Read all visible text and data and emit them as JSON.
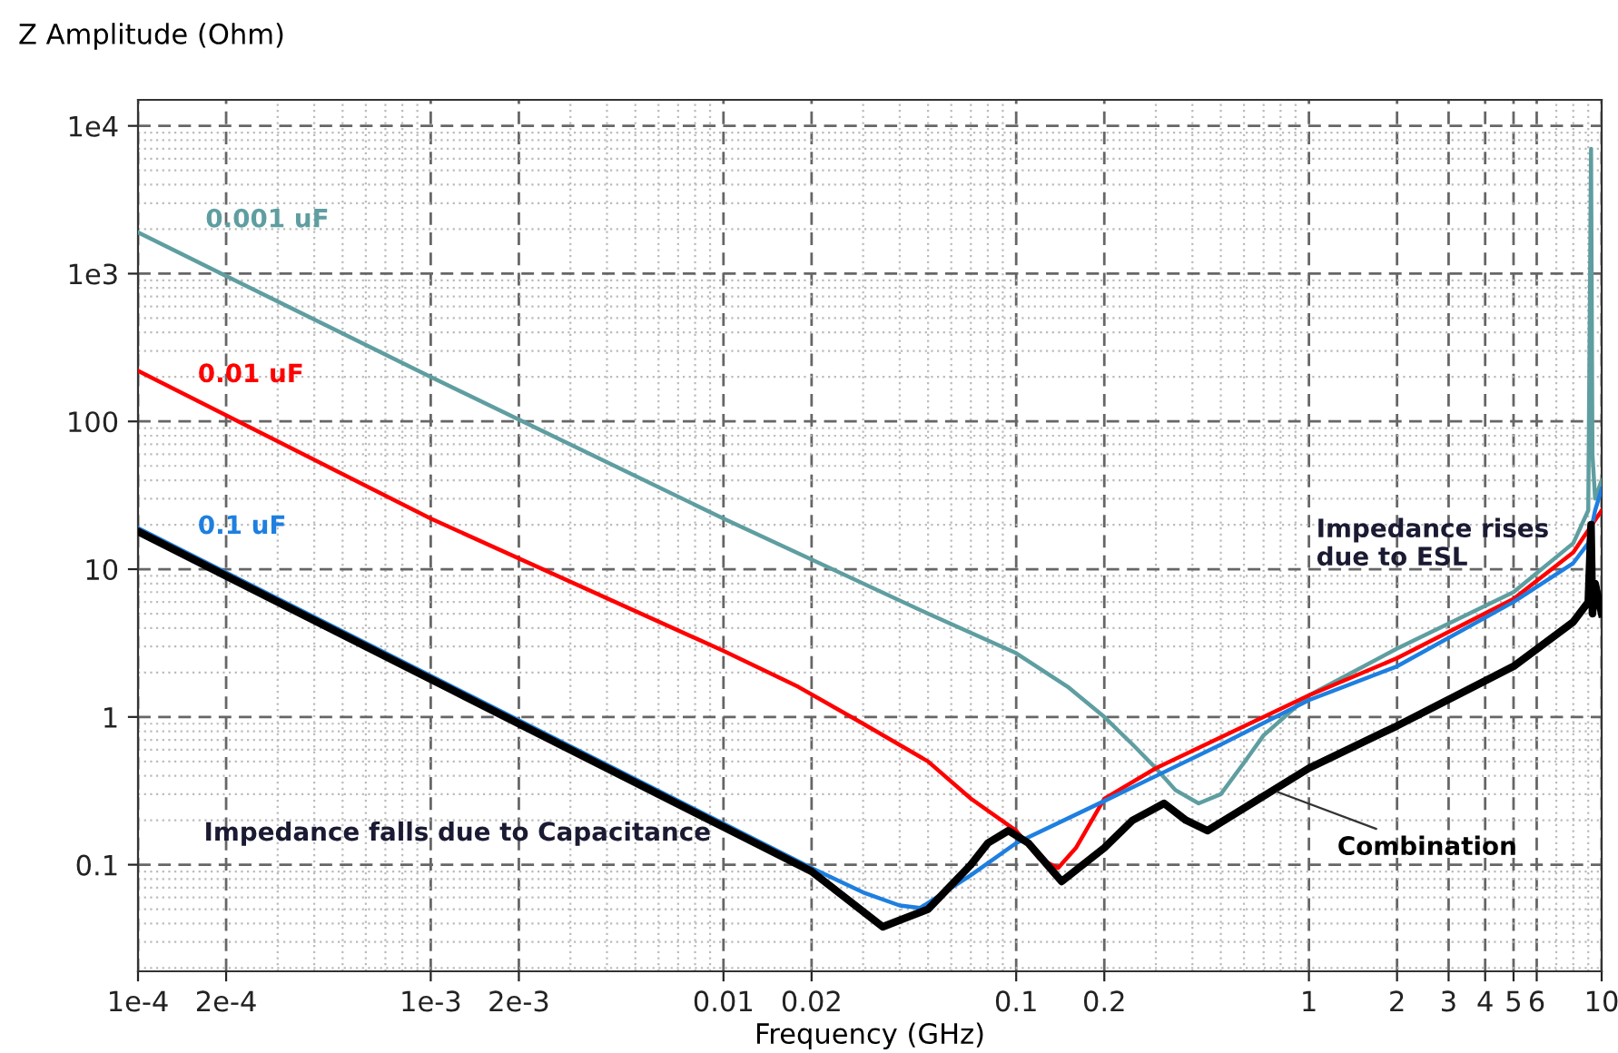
{
  "chart_data": {
    "type": "line",
    "xlabel": "Frequency (GHz)",
    "ylabel": "Z Amplitude (Ohm)",
    "log": "xy",
    "grid": true,
    "legend": false,
    "marker": "none",
    "line_style": "solid",
    "xlim": [
      0.0001,
      10
    ],
    "ylim": [
      0.019,
      15000
    ],
    "xticks": [
      {
        "value": 0.0001,
        "label": "1e-4"
      },
      {
        "value": 0.0002,
        "label": "2e-4"
      },
      {
        "value": 0.001,
        "label": "1e-3"
      },
      {
        "value": 0.002,
        "label": "2e-3"
      },
      0.01,
      0.02,
      0.1,
      0.2,
      1,
      2,
      3,
      4,
      5,
      6,
      10
    ],
    "yticks": [
      0.1,
      1,
      10,
      100,
      {
        "value": 1000,
        "label": "1e3"
      },
      {
        "value": 10000,
        "label": "1e4"
      }
    ],
    "series": [
      {
        "name": "0.001 uF",
        "color": "#5f9ea0",
        "x": [
          0.0001,
          0.001,
          0.01,
          0.05,
          0.1,
          0.15,
          0.2,
          0.25,
          0.3,
          0.35,
          0.42,
          0.5,
          0.6,
          0.7,
          1,
          2,
          5,
          8,
          9,
          9.2,
          9.3,
          9.5,
          10
        ],
        "values": [
          1900,
          200,
          22,
          5,
          2.7,
          1.6,
          1.0,
          0.65,
          0.45,
          0.32,
          0.26,
          0.3,
          0.49,
          0.75,
          1.4,
          2.9,
          7,
          15,
          25,
          7000,
          60,
          30,
          40
        ]
      },
      {
        "name": "0.01 uF",
        "color": "#ff0000",
        "x": [
          0.0001,
          0.001,
          0.01,
          0.018,
          0.03,
          0.05,
          0.07,
          0.1,
          0.12,
          0.139,
          0.16,
          0.2,
          0.3,
          1,
          2,
          5,
          8,
          10
        ],
        "values": [
          220,
          22,
          2.8,
          1.6,
          0.9,
          0.5,
          0.28,
          0.17,
          0.11,
          0.095,
          0.13,
          0.28,
          0.45,
          1.4,
          2.5,
          6.3,
          13,
          25
        ]
      },
      {
        "name": "0.1 uF",
        "color": "#1e7fe0",
        "x": [
          0.0001,
          0.001,
          0.01,
          0.02,
          0.03,
          0.04,
          0.047,
          0.07,
          0.1,
          0.2,
          0.5,
          1,
          2,
          5,
          8,
          9,
          9.5,
          10
        ],
        "values": [
          19,
          1.9,
          0.19,
          0.095,
          0.065,
          0.053,
          0.051,
          0.085,
          0.14,
          0.27,
          0.65,
          1.3,
          2.2,
          6,
          11,
          15,
          25,
          35
        ]
      },
      {
        "name": "Combination",
        "color": "#000000",
        "x": [
          0.0001,
          0.001,
          0.01,
          0.02,
          0.035,
          0.05,
          0.07,
          0.08,
          0.094,
          0.11,
          0.143,
          0.2,
          0.25,
          0.32,
          0.38,
          0.45,
          1,
          2,
          5,
          8,
          9,
          9.2,
          9.3,
          9.5,
          10
        ],
        "values": [
          18,
          1.8,
          0.18,
          0.09,
          0.038,
          0.05,
          0.1,
          0.14,
          0.17,
          0.14,
          0.077,
          0.13,
          0.2,
          0.26,
          0.2,
          0.17,
          0.45,
          0.87,
          2.2,
          4.4,
          6,
          20,
          5,
          8,
          5
        ]
      }
    ],
    "annotations": [
      "Impedance falls due to Capacitance",
      "Impedance rises\ndue to ESL"
    ]
  }
}
